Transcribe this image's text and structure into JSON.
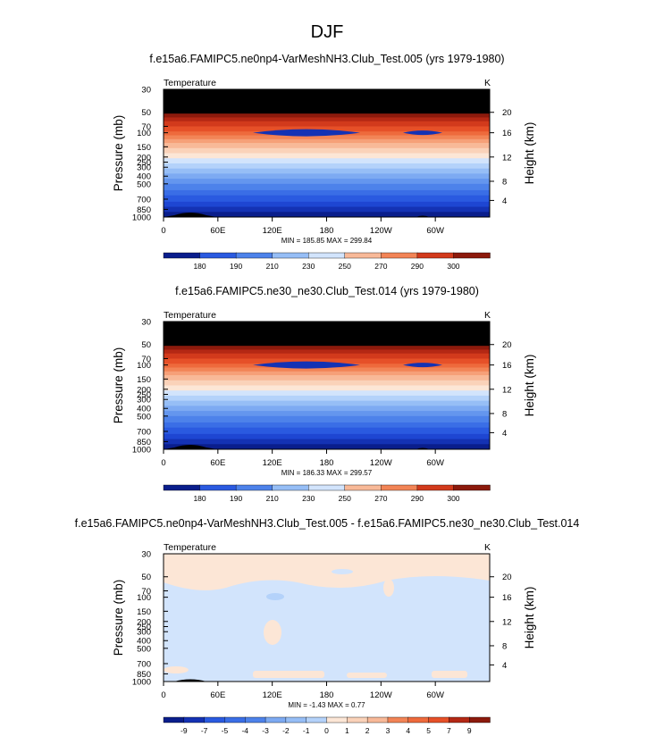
{
  "figure_title": "DJF",
  "chart_data": [
    {
      "type": "heatmap",
      "title": "f.e15a6.FAMIPC5.ne0np4-VarMeshNH3.Club_Test.005 (yrs 1979-1980)",
      "variable": "Temperature",
      "units": "K",
      "xticks": [
        "0",
        "60E",
        "120E",
        "180",
        "120W",
        "60W"
      ],
      "ylabel": "Pressure (mb)",
      "ylabel_right": "Height (km)",
      "yticks": [
        "30",
        "50",
        "70",
        "100",
        "150",
        "200",
        "250",
        "300",
        "400",
        "500",
        "700",
        "850",
        "1000"
      ],
      "yticks_right": [
        "20",
        "16",
        "12",
        "8",
        "4"
      ],
      "stats": "MIN = 185.85   MAX = 299.84",
      "colorbar_labels": [
        "180",
        "190",
        "210",
        "230",
        "250",
        "270",
        "290",
        "300"
      ],
      "colors": [
        "#0a1e8c",
        "#1432b4",
        "#1e46d2",
        "#2a5ae0",
        "#3a6ee6",
        "#4d82ea",
        "#6496ee",
        "#7daaf2",
        "#96bef6",
        "#b4d2fa",
        "#d2e4fc",
        "#fce6d6",
        "#fad2b9",
        "#f8b998",
        "#f6a078",
        "#f28456",
        "#ee6a3c",
        "#e65028",
        "#d23a1c",
        "#b42814",
        "#8c1a0c"
      ],
      "band_levels": [
        [
          0.0,
          13
        ],
        [
          0.045,
          12
        ],
        [
          0.09,
          12
        ],
        [
          0.13,
          11
        ],
        [
          0.16,
          11
        ],
        [
          0.19,
          10
        ],
        [
          0.22,
          9
        ],
        [
          0.25,
          8
        ],
        [
          0.29,
          7
        ],
        [
          0.33,
          6
        ],
        [
          0.36,
          5
        ],
        [
          0.39,
          4
        ],
        [
          0.42,
          3
        ],
        [
          0.46,
          2
        ],
        [
          0.5,
          1
        ],
        [
          0.54,
          0
        ],
        [
          0.58,
          -1
        ],
        [
          0.62,
          -2
        ],
        [
          0.66,
          -3
        ],
        [
          0.7,
          -4
        ],
        [
          0.74,
          -5
        ],
        [
          0.79,
          -6
        ],
        [
          0.83,
          -7
        ],
        [
          0.88,
          -8
        ],
        [
          0.92,
          -9
        ],
        [
          0.96,
          -10
        ]
      ]
    },
    {
      "type": "heatmap",
      "title": "f.e15a6.FAMIPC5.ne30_ne30.Club_Test.014 (yrs 1979-1980)",
      "variable": "Temperature",
      "units": "K",
      "xticks": [
        "0",
        "60E",
        "120E",
        "180",
        "120W",
        "60W"
      ],
      "ylabel": "Pressure (mb)",
      "ylabel_right": "Height (km)",
      "yticks": [
        "30",
        "50",
        "70",
        "100",
        "150",
        "200",
        "250",
        "300",
        "400",
        "500",
        "700",
        "850",
        "1000"
      ],
      "yticks_right": [
        "20",
        "16",
        "12",
        "8",
        "4"
      ],
      "stats": "MIN = 186.33   MAX = 299.57",
      "colorbar_labels": [
        "180",
        "190",
        "210",
        "230",
        "250",
        "270",
        "290",
        "300"
      ],
      "colors": [
        "#0a1e8c",
        "#1432b4",
        "#1e46d2",
        "#2a5ae0",
        "#3a6ee6",
        "#4d82ea",
        "#6496ee",
        "#7daaf2",
        "#96bef6",
        "#b4d2fa",
        "#d2e4fc",
        "#fce6d6",
        "#fad2b9",
        "#f8b998",
        "#f6a078",
        "#f28456",
        "#ee6a3c",
        "#e65028",
        "#d23a1c",
        "#b42814",
        "#8c1a0c"
      ],
      "band_levels": [
        [
          0.0,
          13
        ],
        [
          0.045,
          12
        ],
        [
          0.09,
          12
        ],
        [
          0.13,
          11
        ],
        [
          0.16,
          11
        ],
        [
          0.19,
          10
        ],
        [
          0.22,
          9
        ],
        [
          0.25,
          8
        ],
        [
          0.29,
          7
        ],
        [
          0.33,
          6
        ],
        [
          0.36,
          5
        ],
        [
          0.39,
          4
        ],
        [
          0.42,
          3
        ],
        [
          0.46,
          2
        ],
        [
          0.5,
          1
        ],
        [
          0.54,
          0
        ],
        [
          0.58,
          -1
        ],
        [
          0.62,
          -2
        ],
        [
          0.66,
          -3
        ],
        [
          0.7,
          -4
        ],
        [
          0.74,
          -5
        ],
        [
          0.79,
          -6
        ],
        [
          0.83,
          -7
        ],
        [
          0.88,
          -8
        ],
        [
          0.92,
          -9
        ],
        [
          0.96,
          -10
        ]
      ]
    },
    {
      "type": "heatmap",
      "title": "f.e15a6.FAMIPC5.ne0np4-VarMeshNH3.Club_Test.005 - f.e15a6.FAMIPC5.ne30_ne30.Club_Test.014",
      "variable": "Temperature",
      "units": "K",
      "xticks": [
        "0",
        "60E",
        "120E",
        "180",
        "120W",
        "60W"
      ],
      "ylabel": "Pressure (mb)",
      "ylabel_right": "Height (km)",
      "yticks": [
        "30",
        "50",
        "70",
        "100",
        "150",
        "200",
        "250",
        "300",
        "400",
        "500",
        "700",
        "850",
        "1000"
      ],
      "yticks_right": [
        "20",
        "16",
        "12",
        "8",
        "4"
      ],
      "stats": "MIN =  -1.43   MAX =    0.77",
      "colorbar_labels": [
        "-9",
        "-7",
        "-5",
        "-4",
        "-3",
        "-2",
        "-1",
        "0",
        "1",
        "2",
        "3",
        "4",
        "5",
        "7",
        "9"
      ],
      "colors": [
        "#0a1e8c",
        "#1432b4",
        "#1e46d2",
        "#2a5ae0",
        "#3a6ee6",
        "#4d82ea",
        "#6496ee",
        "#7daaf2",
        "#96bef6",
        "#b4d2fa",
        "#d2e4fc",
        "#fce6d6",
        "#fad2b9",
        "#f8b998",
        "#f6a078",
        "#f28456",
        "#ee6a3c",
        "#e65028",
        "#d23a1c",
        "#b42814",
        "#8c1a0c"
      ],
      "diff_background": "#d2e4fc",
      "diff_positive": "#fce6d6"
    }
  ]
}
